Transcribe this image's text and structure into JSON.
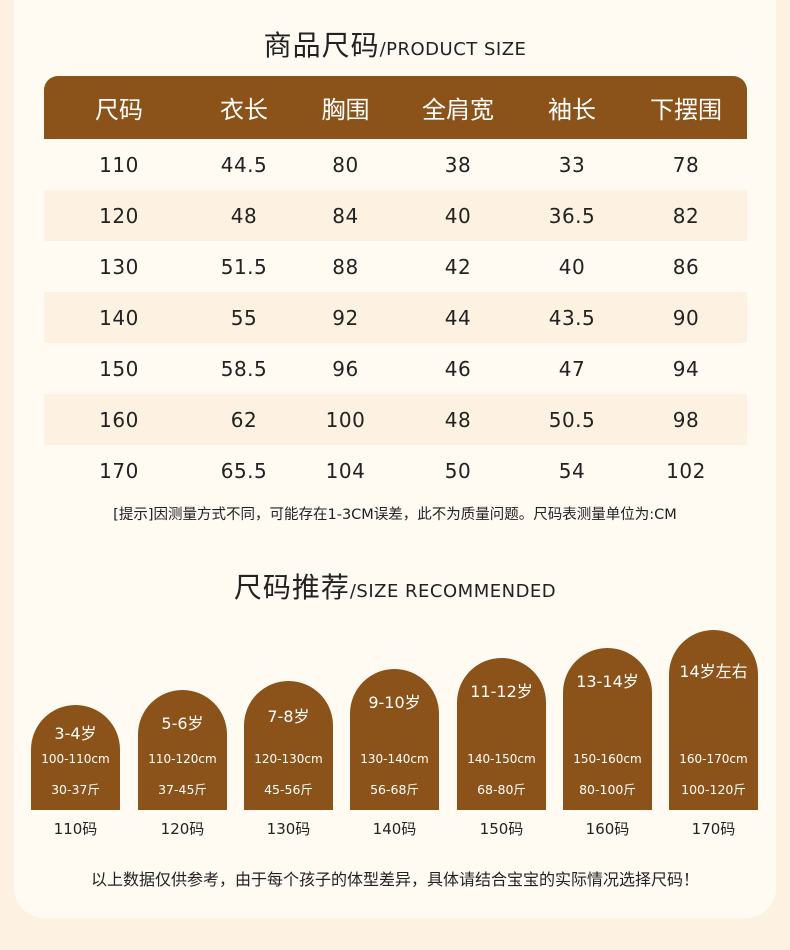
{
  "size_chart": {
    "title_cn": "商品尺码",
    "title_en": "/PRODUCT SIZE",
    "headers": [
      "尺码",
      "衣长",
      "胸围",
      "全肩宽",
      "袖长",
      "下摆围"
    ],
    "rows": [
      [
        "110",
        "44.5",
        "80",
        "38",
        "33",
        "78"
      ],
      [
        "120",
        "48",
        "84",
        "40",
        "36.5",
        "82"
      ],
      [
        "130",
        "51.5",
        "88",
        "42",
        "40",
        "86"
      ],
      [
        "140",
        "55",
        "92",
        "44",
        "43.5",
        "90"
      ],
      [
        "150",
        "58.5",
        "96",
        "46",
        "47",
        "94"
      ],
      [
        "160",
        "62",
        "100",
        "48",
        "50.5",
        "98"
      ],
      [
        "170",
        "65.5",
        "104",
        "50",
        "54",
        "102"
      ]
    ],
    "note": "[提示]因测量方式不同，可能存在1-3CM误差，此不为质量问题。尺码表测量单位为:CM"
  },
  "recommend": {
    "title_cn": "尺码推荐",
    "title_en": "/SIZE RECOMMENDED",
    "items": [
      {
        "age": "3-4岁",
        "height": "100-110cm",
        "weight": "30-37斤",
        "size": "110码"
      },
      {
        "age": "5-6岁",
        "height": "110-120cm",
        "weight": "37-45斤",
        "size": "120码"
      },
      {
        "age": "7-8岁",
        "height": "120-130cm",
        "weight": "45-56斤",
        "size": "130码"
      },
      {
        "age": "9-10岁",
        "height": "130-140cm",
        "weight": "56-68斤",
        "size": "140码"
      },
      {
        "age": "11-12岁",
        "height": "140-150cm",
        "weight": "68-80斤",
        "size": "150码"
      },
      {
        "age": "13-14岁",
        "height": "150-160cm",
        "weight": "80-100斤",
        "size": "160码"
      },
      {
        "age": "14岁左右",
        "height": "160-170cm",
        "weight": "100-120斤",
        "size": "170码"
      }
    ],
    "footer": "以上数据仅供参考，由于每个孩子的体型差异，具体请结合宝宝的实际情况选择尺码！"
  },
  "colors": {
    "brown": "#8b5219",
    "cream": "#fdf1e1"
  }
}
